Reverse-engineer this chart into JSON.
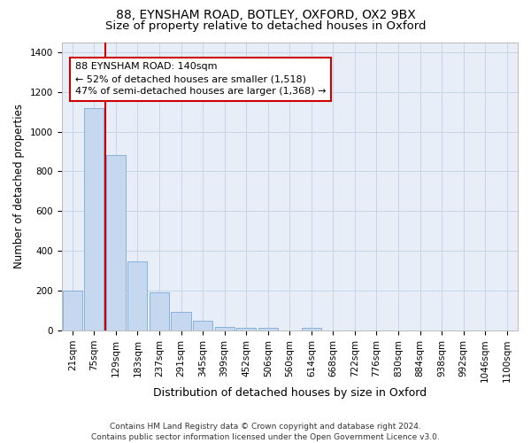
{
  "title": "88, EYNSHAM ROAD, BOTLEY, OXFORD, OX2 9BX",
  "subtitle": "Size of property relative to detached houses in Oxford",
  "xlabel": "Distribution of detached houses by size in Oxford",
  "ylabel": "Number of detached properties",
  "categories": [
    "21sqm",
    "75sqm",
    "129sqm",
    "183sqm",
    "237sqm",
    "291sqm",
    "345sqm",
    "399sqm",
    "452sqm",
    "506sqm",
    "560sqm",
    "614sqm",
    "668sqm",
    "722sqm",
    "776sqm",
    "830sqm",
    "884sqm",
    "938sqm",
    "992sqm",
    "1046sqm",
    "1100sqm"
  ],
  "bar_heights": [
    200,
    1120,
    880,
    350,
    190,
    95,
    50,
    20,
    15,
    15,
    0,
    12,
    0,
    0,
    0,
    0,
    0,
    0,
    0,
    0,
    0
  ],
  "bar_color": "#c5d8f0",
  "bar_edge_color": "#7aaad4",
  "grid_color": "#c8d4e8",
  "background_color": "#e8eef8",
  "vline_x_index": 2,
  "annotation_line1": "88 EYNSHAM ROAD: 140sqm",
  "annotation_line2": "← 52% of detached houses are smaller (1,518)",
  "annotation_line3": "47% of semi-detached houses are larger (1,368) →",
  "annotation_box_color": "#ffffff",
  "annotation_box_edge": "#cc0000",
  "vline_color": "#cc0000",
  "ylim": [
    0,
    1450
  ],
  "yticks": [
    0,
    200,
    400,
    600,
    800,
    1000,
    1200,
    1400
  ],
  "footnote": "Contains HM Land Registry data © Crown copyright and database right 2024.\nContains public sector information licensed under the Open Government Licence v3.0.",
  "title_fontsize": 10,
  "subtitle_fontsize": 9.5,
  "xlabel_fontsize": 9,
  "ylabel_fontsize": 8.5,
  "tick_fontsize": 7.5,
  "annotation_fontsize": 8,
  "footnote_fontsize": 6.5
}
